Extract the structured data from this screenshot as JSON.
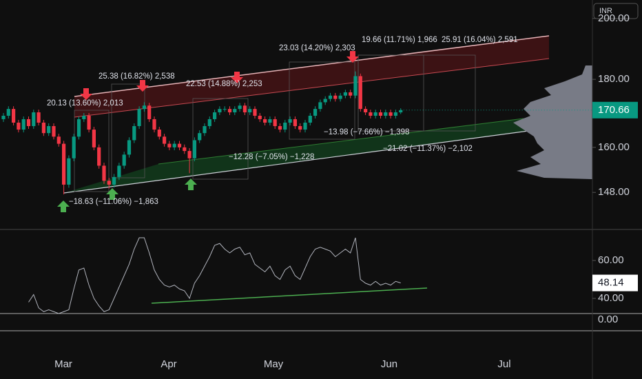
{
  "chart_data": {
    "type": "candlestick",
    "currency": "INR",
    "scale": "log",
    "ylim": [
      138.8,
      206.5
    ],
    "yticks": [
      {
        "value": 148,
        "label": "148.00"
      },
      {
        "value": 160,
        "label": "160.00"
      },
      {
        "value": 180,
        "label": "180.00"
      },
      {
        "value": 200,
        "label": "200.00"
      }
    ],
    "x_labels": [
      "Mar",
      "Apr",
      "May",
      "Jun",
      "Jul"
    ],
    "up_color": "#089981",
    "down_color": "#f23645",
    "candles": {
      "open": [
        168,
        169,
        171,
        167,
        165,
        168,
        166,
        170,
        167,
        164,
        166,
        163,
        161,
        150,
        157,
        163,
        168,
        169,
        165,
        160,
        155,
        151,
        150,
        152,
        155,
        158,
        162,
        166,
        171,
        172,
        168,
        165,
        163,
        161,
        160,
        161,
        160,
        159,
        157,
        162,
        164,
        166,
        168,
        170,
        171,
        171,
        170,
        171,
        172,
        170,
        171,
        169,
        168,
        167,
        168,
        166,
        165,
        167,
        168,
        166,
        165,
        167,
        169,
        171,
        173,
        174,
        175,
        174,
        175,
        176,
        175,
        181,
        171,
        170,
        169,
        170,
        169,
        170,
        169,
        170
      ],
      "high": [
        169.8,
        171.8,
        171.8,
        167.8,
        168.8,
        168.8,
        170.8,
        170.8,
        167.8,
        166.8,
        166.8,
        163.8,
        161.8,
        157.8,
        163.8,
        168.8,
        169.8,
        169.8,
        165.8,
        160.8,
        155.8,
        151.8,
        152.8,
        155.8,
        158.8,
        162.8,
        166.8,
        171.8,
        173,
        172.8,
        168.8,
        165.8,
        163.8,
        161.8,
        161.8,
        161.8,
        160.8,
        159.8,
        162.8,
        164.8,
        166.8,
        168.8,
        170.8,
        171.8,
        171.8,
        171.8,
        171.8,
        172.8,
        172.8,
        171.8,
        171.8,
        169.8,
        168.8,
        168.8,
        168.8,
        166.8,
        167.8,
        168.8,
        168.8,
        166.8,
        167.8,
        169.8,
        171.8,
        173.8,
        174.8,
        175.8,
        175.8,
        175.8,
        176.8,
        176.8,
        182.5,
        181.8,
        171.8,
        170.8,
        170.8,
        170.8,
        170.8,
        170.8,
        170.8,
        171.2
      ],
      "low": [
        167.2,
        168.2,
        166.2,
        164.2,
        164.2,
        165.2,
        165.2,
        166.2,
        163.2,
        163.2,
        162.2,
        160.2,
        147.5,
        149.2,
        156.2,
        162.2,
        167.2,
        164.2,
        159.2,
        154.2,
        150.2,
        149,
        149.2,
        151.2,
        154.2,
        157.2,
        161.2,
        165.2,
        170.2,
        167.2,
        164.2,
        162.2,
        160.2,
        159.2,
        159.2,
        159.2,
        158.2,
        153,
        156.2,
        161.2,
        163.2,
        165.2,
        167.2,
        169.2,
        170.2,
        169.2,
        169.2,
        170.2,
        169.2,
        169.2,
        168.2,
        167.2,
        166.2,
        166.2,
        165.2,
        164.2,
        164.2,
        166.2,
        165.2,
        164.2,
        164.2,
        166.2,
        168.2,
        170.2,
        172.2,
        173.2,
        173.2,
        173.2,
        174.2,
        174.2,
        174.2,
        170.2,
        169.2,
        168.2,
        168.2,
        168.2,
        168.2,
        168.2,
        168.2,
        169.5
      ],
      "close": [
        169,
        171,
        167,
        165,
        168,
        166,
        170,
        167,
        164,
        166,
        163,
        161,
        150,
        157,
        163,
        168,
        169,
        165,
        160,
        155,
        151,
        150,
        152,
        155,
        158,
        162,
        166,
        171,
        172,
        168,
        165,
        163,
        161,
        160,
        161,
        160,
        159,
        157,
        162,
        164,
        166,
        168,
        170,
        171,
        171,
        170,
        171,
        172,
        170,
        171,
        169,
        168,
        167,
        168,
        166,
        165,
        167,
        168,
        166,
        165,
        167,
        169,
        171,
        173,
        174,
        175,
        174,
        175,
        176,
        175,
        181,
        171,
        170,
        169,
        170,
        169,
        170,
        169,
        170,
        170.66
      ]
    },
    "annotations": [
      "20.13 (13.60%) 2,013",
      "25.38 (16.82%) 2,538",
      "22.53 (14.88%) 2,253",
      "23.03 (14.20%) 2,303",
      "19.66 (11.71%) 1,966",
      "25.91 (16.04%) 2,591",
      "−18.63 (−11.06%) −1,863",
      "−12.28 (−7.05%) −1,228",
      "−13.98 (−7.66%) −1,398",
      "−21.02 (−11.37%) −2,102"
    ],
    "indicator": {
      "type": "line",
      "color": "#b2b5be",
      "ylim": [
        32,
        72
      ],
      "yticks": [
        {
          "value": 40,
          "label": "40.00"
        },
        {
          "value": 60,
          "label": "60.00"
        }
      ],
      "values": [
        null,
        null,
        null,
        null,
        null,
        38,
        42,
        35,
        33,
        34,
        33,
        32,
        33,
        34,
        45,
        55,
        56,
        47,
        40,
        36,
        33,
        34,
        40,
        46,
        52,
        58,
        66,
        72,
        72,
        64,
        55,
        50,
        47,
        46,
        47,
        45,
        44,
        40,
        48,
        52,
        57,
        62,
        68,
        69,
        66,
        64,
        66,
        67,
        63,
        64,
        58,
        56,
        54,
        57,
        52,
        50,
        55,
        57,
        52,
        50,
        56,
        62,
        66,
        67,
        66,
        65,
        62,
        64,
        66,
        64,
        72,
        50,
        48,
        47,
        49,
        47,
        48,
        47,
        49,
        48.14
      ]
    },
    "pane3_ticks": [
      {
        "value": 0,
        "label": "0.00"
      }
    ]
  }
}
